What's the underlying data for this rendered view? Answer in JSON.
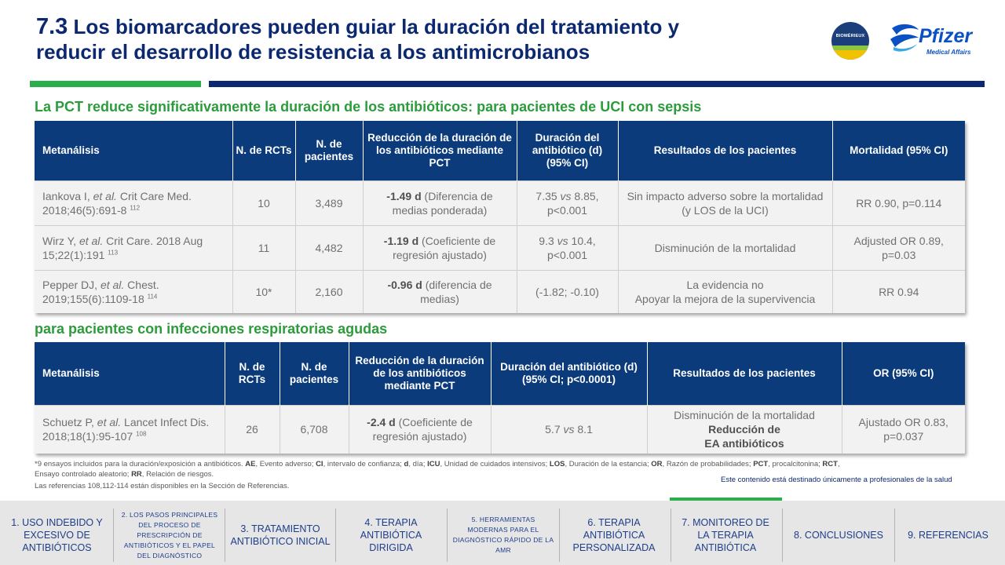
{
  "title": {
    "number": "7.3",
    "text": " Los biomarcadores pueden guiar la duración del tratamiento y reducir el desarrollo de resistencia a los antimicrobianos"
  },
  "logos": {
    "biomerieux": "BIOMÉRIEUX",
    "pfizer_name": "Pfizer",
    "pfizer_sub": "Medical Affairs"
  },
  "section1": {
    "heading": "La PCT reduce significativamente la duración de los antibióticos: para pacientes de UCI con sepsis",
    "headers": [
      "Metanálisis",
      "N. de RCTs",
      "N. de pacientes",
      "Reducción de la duración de los antibióticos mediante PCT",
      "Duración del antibiótico (d) (95% CI)",
      "Resultados de los pacientes",
      "Mortalidad (95% CI)"
    ],
    "rows": [
      {
        "author": "Iankova I, ",
        "etal": "et al.",
        "citation": " Crit Care Med. 2018;46(5):691-8 ",
        "ref": "112",
        "rcts": "10",
        "patients": "3,489",
        "reduction_value": "-1.49 d",
        "reduction_note": " (Diferencia de medias ponderada)",
        "dur_a": "7.35 ",
        "dur_vs": "vs",
        "dur_b": " 8.85, p<0.001",
        "outcome": "Sin impacto adverso sobre la mortalidad (y LOS de la UCI)",
        "mortality": "RR 0.90, p=0.114"
      },
      {
        "author": "Wirz Y, ",
        "etal": "et al.",
        "citation": " Crit Care. 2018 Aug 15;22(1):191 ",
        "ref": "113",
        "rcts": "11",
        "patients": "4,482",
        "reduction_value": "-1.19 d",
        "reduction_note": " (Coeficiente de regresión ajustado)",
        "dur_a": "9.3 ",
        "dur_vs": "vs",
        "dur_b": " 10.4, p<0.001",
        "outcome": "Disminución de la mortalidad",
        "mortality": "Adjusted OR 0.89, p=0.03"
      },
      {
        "author": "Pepper DJ, ",
        "etal": "et al.",
        "citation": " Chest. 2019;155(6):1109-18 ",
        "ref": "114",
        "rcts": "10*",
        "patients": "2,160",
        "reduction_value": "-0.96 d",
        "reduction_note": " (diferencia de medias)",
        "dur_a": "(-1.82; -0.10)",
        "dur_vs": "",
        "dur_b": "",
        "outcome_line1": "La evidencia no",
        "outcome_line2": "Apoyar la mejora de la supervivencia",
        "mortality": "RR 0.94"
      }
    ]
  },
  "section2": {
    "heading": "para pacientes con infecciones respiratorias agudas",
    "headers": [
      "Metanálisis",
      "N. de RCTs",
      "N. de pacientes",
      "Reducción de la duración de los antibióticos mediante PCT",
      "Duración del antibiótico (d) (95% CI; p<0.0001)",
      "Resultados de los pacientes",
      "OR (95% CI)"
    ],
    "row": {
      "author": "Schuetz P, ",
      "etal": "et al.",
      "citation": " Lancet Infect Dis. 2018;18(1):95-107 ",
      "ref": "108",
      "rcts": "26",
      "patients": "6,708",
      "reduction_value": "-2.4 d",
      "reduction_note": " (Coeficiente de regresión ajustado)",
      "dur_a": "5.7 ",
      "dur_vs": "vs",
      "dur_b": " 8.1",
      "outcome_line1": "Disminución de la mortalidad",
      "outcome_line2": "Reducción de",
      "outcome_line3": "EA antibióticos",
      "or": "Ajustado OR 0.83, p=0.037"
    }
  },
  "footnote": {
    "p1": "*9 ensayos incluidos para la duración/exposición a antibióticos. ",
    "AE": "AE",
    "p2": ", Evento adverso; ",
    "CI": "CI",
    "p3": ", intervalo de confianza; ",
    "d": "d",
    "p4": ", día; ",
    "ICU": "ICU",
    "p5": ", Unidad de cuidados intensivos; ",
    "LOS": "LOS",
    "p6": ", Duración de la estancia; ",
    "OR": "OR",
    "p7": ", Razón de probabilidades; ",
    "PCT": "PCT",
    "p8": ", procalcitonina; ",
    "RCT": "RCT",
    "p9": ", Ensayo controlado aleatorio; ",
    "RR": "RR",
    "p10": ", Relación de riesgos."
  },
  "references_note": "Las referencias 108,112-114 están disponibles en la Sección de Referencias.",
  "hcp_note": "Este contenido está destinado únicamente a profesionales de la salud",
  "nav": [
    "1. USO INDEBIDO Y EXCESIVO DE ANTIBIÓTICOS",
    "2. LOS PASOS PRINCIPALES DEL PROCESO DE PRESCRIPCIÓN DE ANTIBIÓTICOS Y EL PAPEL DEL DIAGNÓSTICO",
    "3. TRATAMIENTO ANTIBIÓTICO INICIAL",
    "4. TERAPIA ANTIBIÓTICA DIRIGIDA",
    "5. HERRAMIENTAS MODERNAS PARA EL DIAGNÓSTICO RÁPIDO DE LA AMR",
    "6. TERAPIA ANTIBIÓTICA PERSONALIZADA",
    "7. MONITOREO DE LA TERAPIA ANTIBIÓTICA",
    "8. CONCLUSIONES",
    "9. REFERENCIAS"
  ],
  "colors": {
    "navy": "#0b2870",
    "green": "#2cae4c",
    "header": "#0b3b7b"
  }
}
